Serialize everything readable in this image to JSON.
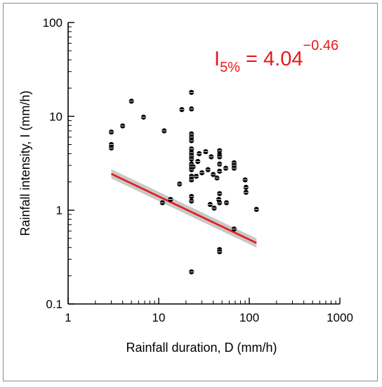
{
  "chart_data": {
    "type": "scatter",
    "title": "",
    "xlabel": "Rainfall duration, D (mm/h)",
    "ylabel": "Rainfall intensity, I (mm/h)",
    "xscale": "log",
    "yscale": "log",
    "xlim": [
      1,
      1000
    ],
    "ylim": [
      0.1,
      100
    ],
    "xticks": [
      "1",
      "10",
      "100",
      "1000"
    ],
    "yticks": [
      "0.1",
      "1",
      "10",
      "100"
    ],
    "grid": false,
    "legend": "none",
    "annotation": {
      "base": "I",
      "subscript": "5%",
      "rhs": " = 4.04",
      "superscript": "−0.46",
      "color": "#e8191a"
    },
    "series": [
      {
        "marker_color": "#000000",
        "points": [
          [
            3.0,
            6.8
          ],
          [
            3.0,
            5.0
          ],
          [
            3.0,
            4.6
          ],
          [
            4.0,
            7.9
          ],
          [
            5.0,
            14.5
          ],
          [
            6.8,
            9.8
          ],
          [
            11.5,
            7.0
          ],
          [
            11.0,
            1.2
          ],
          [
            13.5,
            1.3
          ],
          [
            17.0,
            1.9
          ],
          [
            18.0,
            11.8
          ],
          [
            23.0,
            18.0
          ],
          [
            23.0,
            12.0
          ],
          [
            23.0,
            6.5
          ],
          [
            23.0,
            6.0
          ],
          [
            23.0,
            5.5
          ],
          [
            23.0,
            4.5
          ],
          [
            23.0,
            4.1
          ],
          [
            23.0,
            3.8
          ],
          [
            23.0,
            3.5
          ],
          [
            23.0,
            3.1
          ],
          [
            23.0,
            2.9
          ],
          [
            23.0,
            2.7
          ],
          [
            23.0,
            2.3
          ],
          [
            23.0,
            2.1
          ],
          [
            23.0,
            1.4
          ],
          [
            23.0,
            1.25
          ],
          [
            23.0,
            0.22
          ],
          [
            24.0,
            2.9
          ],
          [
            26.0,
            2.3
          ],
          [
            27.0,
            3.3
          ],
          [
            28.0,
            4.0
          ],
          [
            30.0,
            2.5
          ],
          [
            33.0,
            4.2
          ],
          [
            35.0,
            2.7
          ],
          [
            37.0,
            1.15
          ],
          [
            38.0,
            3.7
          ],
          [
            40.0,
            2.4
          ],
          [
            41.0,
            1.05
          ],
          [
            44.0,
            2.2
          ],
          [
            46.0,
            1.3
          ],
          [
            47.0,
            4.3
          ],
          [
            47.0,
            3.9
          ],
          [
            47.0,
            3.7
          ],
          [
            47.0,
            3.1
          ],
          [
            47.0,
            2.6
          ],
          [
            47.0,
            1.5
          ],
          [
            47.0,
            1.2
          ],
          [
            47.0,
            0.38
          ],
          [
            47.0,
            0.36
          ],
          [
            55.0,
            2.8
          ],
          [
            56.0,
            1.2
          ],
          [
            68.0,
            3.2
          ],
          [
            68.0,
            3.0
          ],
          [
            68.0,
            2.8
          ],
          [
            68.0,
            0.63
          ],
          [
            90.0,
            2.1
          ],
          [
            92.0,
            1.75
          ],
          [
            92.0,
            1.55
          ],
          [
            120.0,
            1.02
          ]
        ]
      }
    ],
    "fit_line": {
      "coefficient": 4.04,
      "exponent": -0.46,
      "x_range": [
        3,
        120
      ],
      "color": "#e8191a",
      "band_color": "#c8c8c8",
      "band_factor": 1.12
    }
  }
}
